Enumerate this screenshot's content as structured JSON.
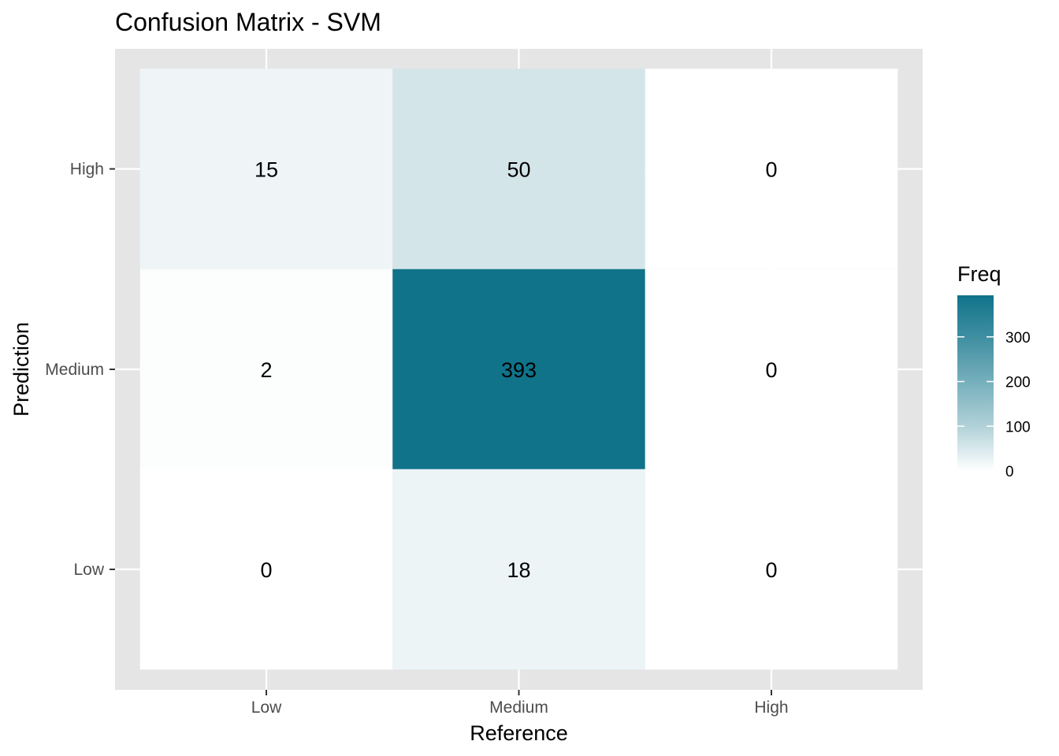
{
  "chart_data": {
    "type": "heatmap",
    "title": "Confusion Matrix - SVM",
    "xlabel": "Reference",
    "ylabel": "Prediction",
    "x_categories": [
      "Low",
      "Medium",
      "High"
    ],
    "y_categories": [
      "Low",
      "Medium",
      "High"
    ],
    "cells": [
      {
        "x": "Low",
        "y": "High",
        "value": 15
      },
      {
        "x": "Medium",
        "y": "High",
        "value": 50
      },
      {
        "x": "High",
        "y": "High",
        "value": 0
      },
      {
        "x": "Low",
        "y": "Medium",
        "value": 2
      },
      {
        "x": "Medium",
        "y": "Medium",
        "value": 393
      },
      {
        "x": "High",
        "y": "Medium",
        "value": 0
      },
      {
        "x": "Low",
        "y": "Low",
        "value": 0
      },
      {
        "x": "Medium",
        "y": "Low",
        "value": 18
      },
      {
        "x": "High",
        "y": "Low",
        "value": 0
      }
    ],
    "legend": {
      "title": "Freq",
      "ticks": [
        0,
        100,
        200,
        300
      ],
      "range": [
        0,
        393
      ],
      "placement": "right",
      "low_color": "#ffffff",
      "high_color": "#10738a"
    },
    "panel_background": "#e5e5e5",
    "grid_color": "#ffffff",
    "grid": true
  }
}
